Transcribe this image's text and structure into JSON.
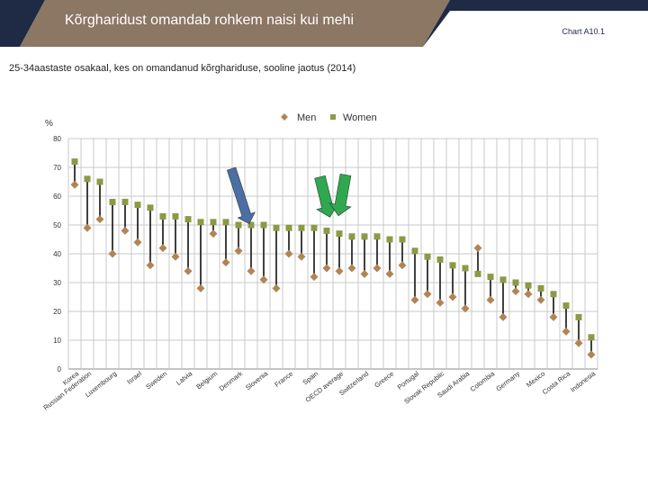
{
  "header": {
    "title": "Kõrgharidust omandab rohkem naisi kui mehi",
    "chart_id": "Chart A10.1",
    "band_color": "#1f2a44",
    "accent_color": "#8b7764"
  },
  "subtitle": "25-34aastaste osakaal, kes on omandanud kõrghariduse, sooline jaotus (2014)",
  "chart_data": {
    "type": "scatter",
    "title": "",
    "xlabel": "",
    "ylabel": "%",
    "ylim": [
      0,
      80
    ],
    "yticks": [
      0,
      10,
      20,
      30,
      40,
      50,
      60,
      70,
      80
    ],
    "grid": true,
    "legend_position": "top-center",
    "series": [
      {
        "name": "Men",
        "color": "#b08556",
        "marker": "diamond",
        "values": [
          64,
          49,
          52,
          40,
          48,
          44,
          36,
          42,
          39,
          34,
          28,
          47,
          37,
          41,
          34,
          31,
          28,
          40,
          39,
          32,
          35,
          34,
          35,
          33,
          35,
          33,
          36,
          24,
          26,
          23,
          25,
          21,
          42,
          24,
          18,
          27,
          26,
          24,
          18,
          13,
          9,
          5
        ]
      },
      {
        "name": "Women",
        "color": "#8c9a46",
        "marker": "square",
        "values": [
          72,
          66,
          65,
          58,
          58,
          57,
          56,
          53,
          53,
          52,
          51,
          51,
          51,
          50,
          50,
          50,
          49,
          49,
          49,
          49,
          48,
          47,
          46,
          46,
          46,
          45,
          45,
          41,
          39,
          38,
          36,
          35,
          33,
          32,
          31,
          30,
          29,
          28,
          26,
          22,
          18,
          11
        ]
      }
    ],
    "categories": [
      "Korea",
      "Russian Federation",
      "",
      "Luxembourg",
      "",
      "Israel",
      "",
      "Sweden",
      "",
      "Latvia",
      "",
      "Belgium",
      "",
      "Denmark",
      "",
      "Slovenia",
      "",
      "France",
      "",
      "Spain",
      "",
      "OECD average",
      "",
      "Switzerland",
      "",
      "Greece",
      "",
      "Portugal",
      "",
      "Slovak Republic",
      "",
      "Saudi Arabia",
      "",
      "Colombia",
      "",
      "Germany",
      "",
      "Mexico",
      "",
      "Costa Rica",
      "",
      "Indonesia"
    ],
    "arrows": [
      {
        "name": "blue-arrow",
        "color": "#4a6fa5"
      },
      {
        "name": "green-arrow-1",
        "color": "#2fa84f"
      },
      {
        "name": "green-arrow-2",
        "color": "#2fa84f"
      }
    ]
  }
}
